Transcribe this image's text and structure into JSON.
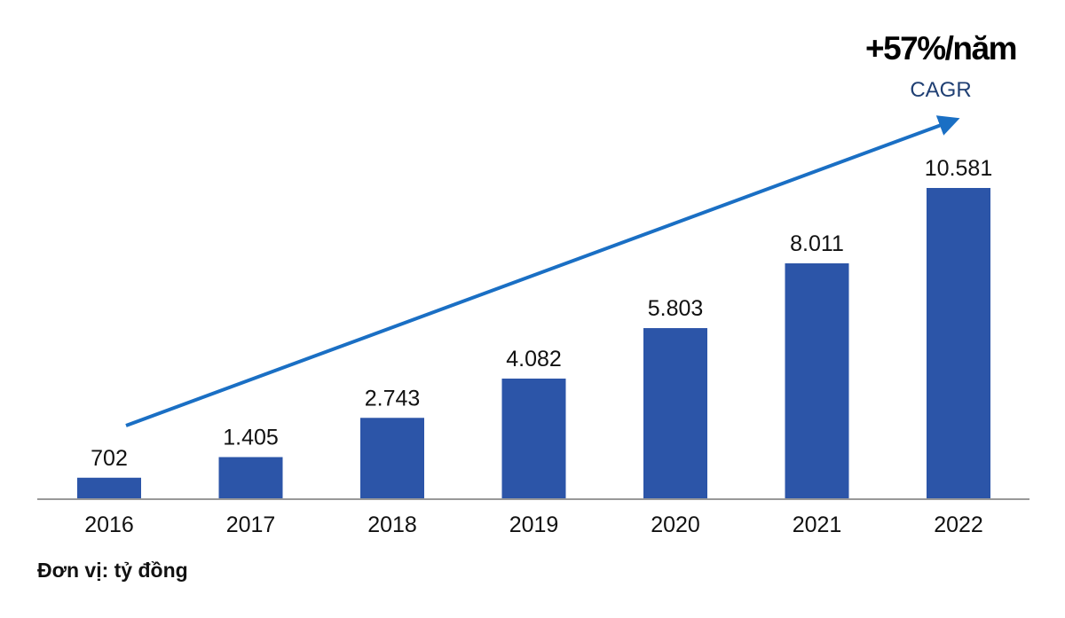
{
  "chart_data": {
    "type": "bar",
    "categories": [
      "2016",
      "2017",
      "2018",
      "2019",
      "2020",
      "2021",
      "2022"
    ],
    "values": [
      702,
      1405,
      2743,
      4082,
      5803,
      8011,
      10581
    ],
    "value_labels": [
      "702",
      "1.405",
      "2.743",
      "4.082",
      "5.803",
      "8.011",
      "10.581"
    ],
    "title": "",
    "xlabel": "",
    "ylabel": "",
    "ylim": [
      0,
      10581
    ],
    "grid": false,
    "unit_note": "Đơn vị: tỷ đồng",
    "annotation": {
      "text": "+57%/năm",
      "subtext": "CAGR",
      "arrow": "trend arrow from 2016 to 2022"
    },
    "colors": {
      "bar": "#2c55a8",
      "arrow": "#1a6fc4",
      "subtext": "#1f3f73",
      "axis": "#999999"
    }
  }
}
